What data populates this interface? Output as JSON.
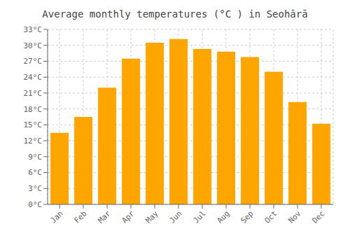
{
  "chart_data": {
    "type": "bar",
    "title": "Average monthly temperatures (°C ) in Seohārā",
    "categories": [
      "Jan",
      "Feb",
      "Mar",
      "Apr",
      "May",
      "Jun",
      "Jul",
      "Aug",
      "Sep",
      "Oct",
      "Nov",
      "Dec"
    ],
    "values": [
      13.5,
      16.5,
      22.0,
      27.5,
      30.5,
      31.2,
      29.3,
      28.8,
      27.8,
      25.0,
      19.3,
      15.2
    ],
    "color": "#FFA500",
    "ylim": [
      0,
      33
    ],
    "yticks": [
      {
        "value": 0,
        "label": "0°C"
      },
      {
        "value": 3,
        "label": "3°C"
      },
      {
        "value": 6,
        "label": "6°C"
      },
      {
        "value": 9,
        "label": "9°C"
      },
      {
        "value": 12,
        "label": "12°C"
      },
      {
        "value": 15,
        "label": "15°C"
      },
      {
        "value": 18,
        "label": "18°C"
      },
      {
        "value": 21,
        "label": "21°C"
      },
      {
        "value": 24,
        "label": "24°C"
      },
      {
        "value": 27,
        "label": "27°C"
      },
      {
        "value": 30,
        "label": "30°C"
      },
      {
        "value": 33,
        "label": "33°C"
      }
    ],
    "grid": true
  }
}
